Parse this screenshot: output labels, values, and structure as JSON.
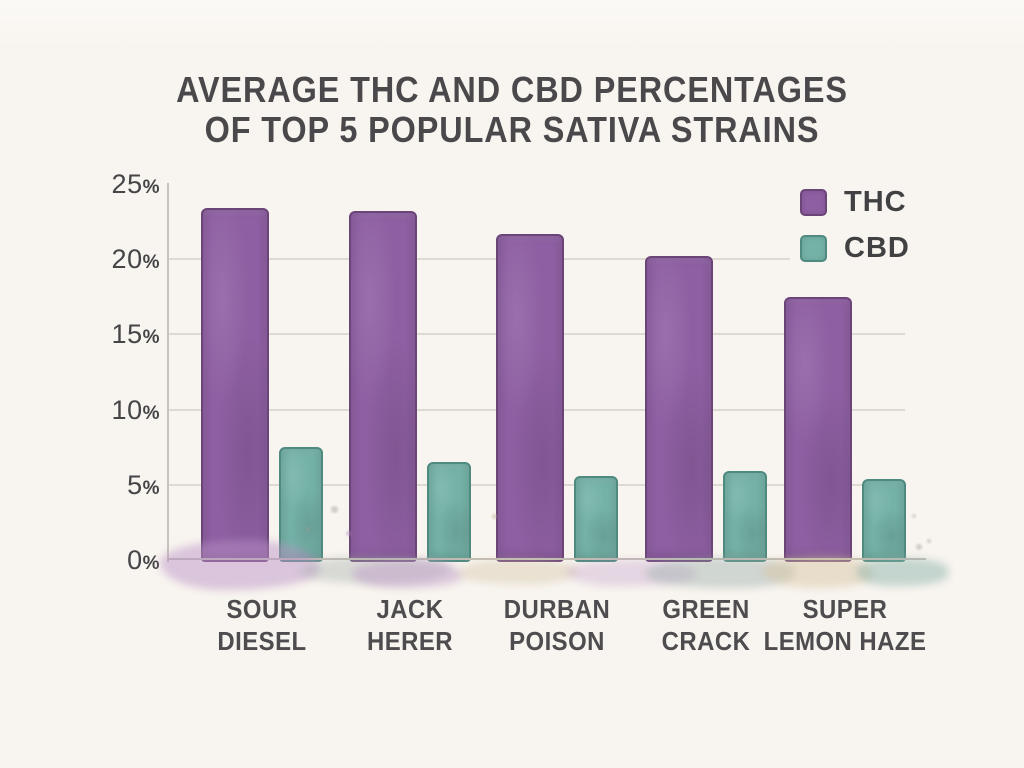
{
  "title": {
    "line1": "AVERAGE THC AND CBD PERCENTAGES",
    "line2": "OF TOP 5 POPULAR SATIVA STRAINS"
  },
  "palette": {
    "background": "#f8f4ef",
    "title_text": "#4a484b",
    "axis_text": "#454548",
    "gridline": "#dedad2",
    "thc_purple": "#8e5fa2",
    "cbd_teal": "#74b2a7"
  },
  "chart_data": {
    "type": "bar",
    "title": "Average THC and CBD Percentages of Top 5 Popular Sativa Strains",
    "categories": [
      "Sour Diesel",
      "Jack Herer",
      "Durban Poison",
      "Green Crack",
      "Super Lemon Haze"
    ],
    "category_label_lines": [
      [
        "SOUR",
        "DIESEL"
      ],
      [
        "JACK",
        "HERER"
      ],
      [
        "DURBAN",
        "POISON"
      ],
      [
        "GREEN",
        "CRACK"
      ],
      [
        "SUPER",
        "LEMON HAZE"
      ]
    ],
    "series": [
      {
        "name": "THC",
        "color": "#8e5fa2",
        "edge_color": "#6b4478",
        "values": [
          23.4,
          23.2,
          21.7,
          20.2,
          17.5
        ]
      },
      {
        "name": "CBD",
        "color": "#74b2a7",
        "edge_color": "#4e8a7f",
        "values": [
          7.5,
          6.5,
          5.6,
          5.9,
          5.4
        ]
      }
    ],
    "xlabel": "",
    "ylabel": "",
    "yticks": [
      0,
      5,
      10,
      15,
      20,
      25
    ],
    "ytick_suffix": "%",
    "ylim": [
      0,
      25
    ],
    "grid": "horizontal",
    "legend_position": "top-right",
    "style": "hand-painted watercolor"
  }
}
